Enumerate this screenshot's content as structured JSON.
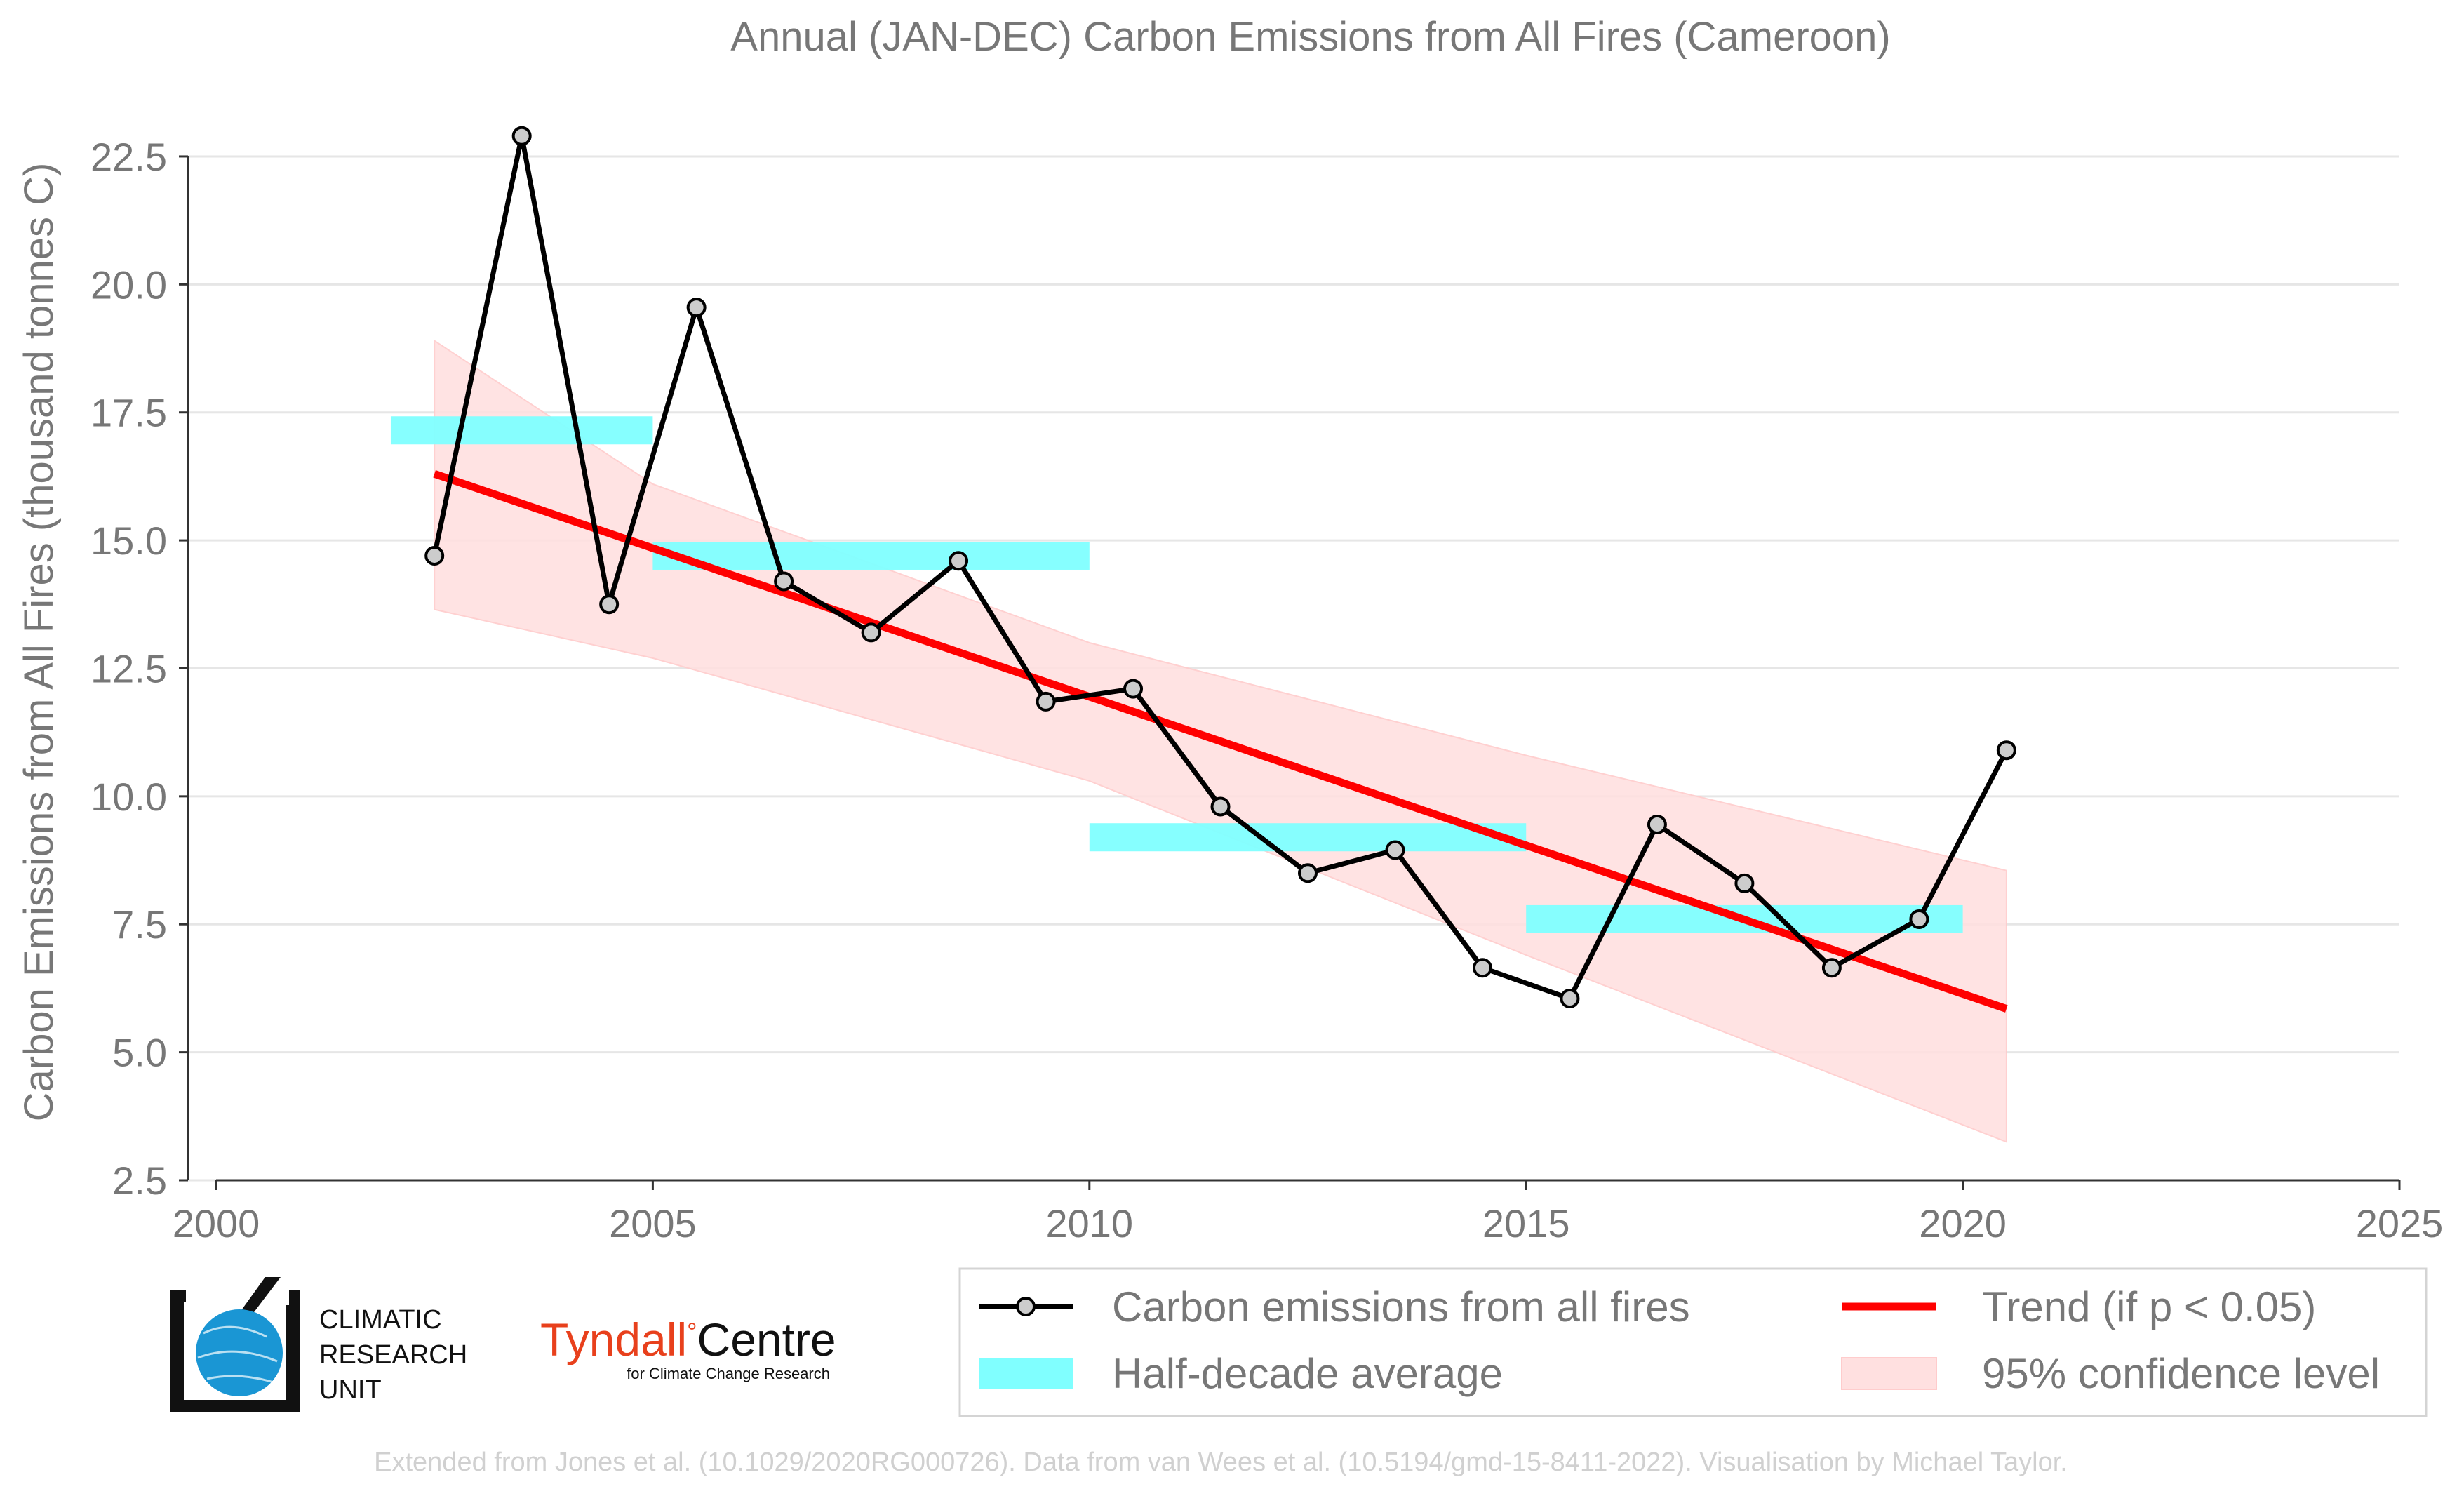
{
  "chart_data": {
    "type": "line",
    "title": "Annual (JAN-DEC) Carbon Emissions from All Fires (Cameroon)",
    "ylabel": "Carbon Emissions from All Fires (thousand tonnes C)",
    "xlim": [
      2000,
      2025
    ],
    "ylim": [
      2.5,
      23.5
    ],
    "x_ticks": [
      2000,
      2005,
      2010,
      2015,
      2020,
      2025
    ],
    "x_tick_labels": [
      "2000",
      "2005",
      "2010",
      "2015",
      "2020",
      "2025"
    ],
    "y_ticks": [
      2.5,
      5.0,
      7.5,
      10.0,
      12.5,
      15.0,
      17.5,
      20.0,
      22.5
    ],
    "y_tick_labels": [
      "2.5",
      "5.0",
      "7.5",
      "10.0",
      "12.5",
      "15.0",
      "17.5",
      "20.0",
      "22.5"
    ],
    "grid": true,
    "series": [
      {
        "name": "Carbon emissions from all fires",
        "color": "#000000",
        "marker_fill": "#cccccc",
        "x": [
          2002.5,
          2003.5,
          2004.5,
          2005.5,
          2006.5,
          2007.5,
          2008.5,
          2009.5,
          2010.5,
          2011.5,
          2012.5,
          2013.5,
          2014.5,
          2015.5,
          2016.5,
          2017.5,
          2018.5,
          2019.5,
          2020.5
        ],
        "y": [
          14.7,
          22.9,
          13.75,
          19.55,
          14.2,
          13.2,
          14.6,
          11.85,
          12.1,
          9.8,
          8.5,
          8.95,
          6.65,
          6.05,
          9.45,
          8.3,
          6.65,
          7.6,
          10.9
        ]
      }
    ],
    "half_decade_average": {
      "name": "Half-decade average",
      "color": "#80ffff",
      "segments": [
        {
          "x0": 2002,
          "x1": 2005,
          "y": 17.15
        },
        {
          "x0": 2005,
          "x1": 2010,
          "y": 14.7
        },
        {
          "x0": 2010,
          "x1": 2015,
          "y": 9.2
        },
        {
          "x0": 2015,
          "x1": 2020,
          "y": 7.6
        }
      ]
    },
    "trend": {
      "name": "Trend (if p < 0.05)",
      "color": "#ff0000",
      "x": [
        2002.5,
        2020.5
      ],
      "y": [
        16.3,
        5.85
      ]
    },
    "confidence": {
      "name": "95% confidence level",
      "color": "#ffe0e0",
      "x": [
        2002.5,
        2005,
        2010,
        2015,
        2020.5
      ],
      "upper": [
        18.9,
        16.1,
        13.0,
        10.8,
        8.55
      ],
      "lower": [
        13.65,
        12.7,
        10.3,
        6.9,
        3.25
      ]
    },
    "legend_position": "bottom-right"
  },
  "logos": {
    "cru_lines": [
      "CLIMATIC",
      "RESEARCH",
      "UNIT"
    ],
    "tyndall_name": "Tyndall",
    "tyndall_degree": "°",
    "tyndall_centre": "Centre",
    "tyndall_sub": "for Climate Change Research"
  },
  "credit": "Extended from Jones et al. (10.1029/2020RG000726). Data from van Wees et al. (10.5194/gmd-15-8411-2022). Visualisation by Michael Taylor."
}
